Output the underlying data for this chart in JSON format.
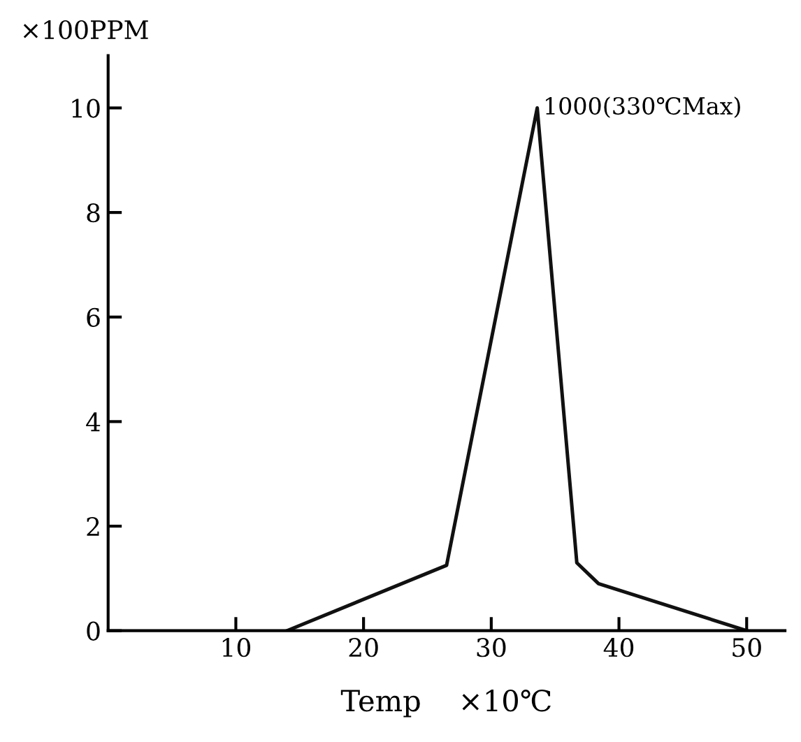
{
  "chart_data": {
    "type": "line",
    "xlabel": "Temp    ×10℃",
    "ylabel": "×100PPM",
    "x": [
      14,
      26.5,
      33.6,
      36.7,
      38.4,
      50
    ],
    "values": [
      0,
      1.25,
      10,
      1.3,
      0.9,
      0
    ],
    "color": "#111111",
    "xlim": [
      0,
      53
    ],
    "ylim": [
      0,
      11
    ],
    "xticks": [
      10,
      20,
      30,
      40,
      50
    ],
    "yticks": [
      0,
      2,
      4,
      6,
      8,
      10
    ],
    "grid": false,
    "marker": "none",
    "line_style": "solid",
    "annotations": [
      {
        "text": "1000(330℃Max)",
        "x": 33.6,
        "y": 10
      }
    ]
  }
}
